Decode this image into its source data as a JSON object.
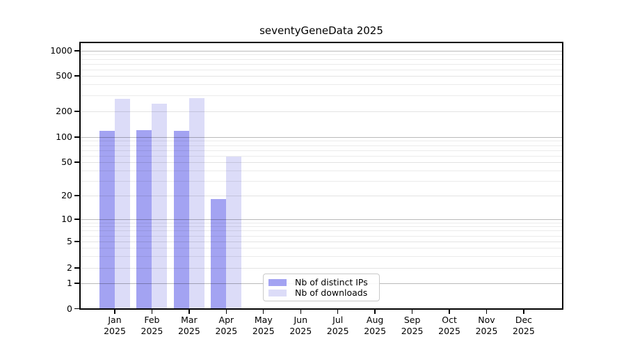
{
  "chart_data": {
    "type": "bar",
    "title": "seventyGeneData 2025",
    "categories": [
      "Jan",
      "Feb",
      "Mar",
      "Apr",
      "May",
      "Jun",
      "Jul",
      "Aug",
      "Sep",
      "Oct",
      "Nov",
      "Dec"
    ],
    "year_label": "2025",
    "series": [
      {
        "name": "Nb of distinct IPs",
        "color": "#a3a3f2",
        "values": [
          118,
          120,
          119,
          18,
          0,
          0,
          0,
          0,
          0,
          0,
          0,
          0
        ]
      },
      {
        "name": "Nb of downloads",
        "color": "#dcdcf8",
        "values": [
          275,
          245,
          280,
          58,
          0,
          0,
          0,
          0,
          0,
          0,
          0,
          0
        ]
      }
    ],
    "yticks": [
      0,
      1,
      2,
      5,
      10,
      20,
      50,
      100,
      200,
      500,
      1000
    ],
    "ytick_major": [
      1,
      10,
      100,
      1000
    ],
    "minor_gridlines": [
      3,
      4,
      6,
      7,
      8,
      9,
      30,
      40,
      60,
      70,
      80,
      90,
      300,
      400,
      600,
      700,
      800,
      900
    ],
    "yscale": "symlog",
    "ylim": [
      0,
      1250
    ],
    "grid": "horizontal",
    "legend_position": "lower-center-inside",
    "xlabel": "",
    "ylabel": ""
  }
}
